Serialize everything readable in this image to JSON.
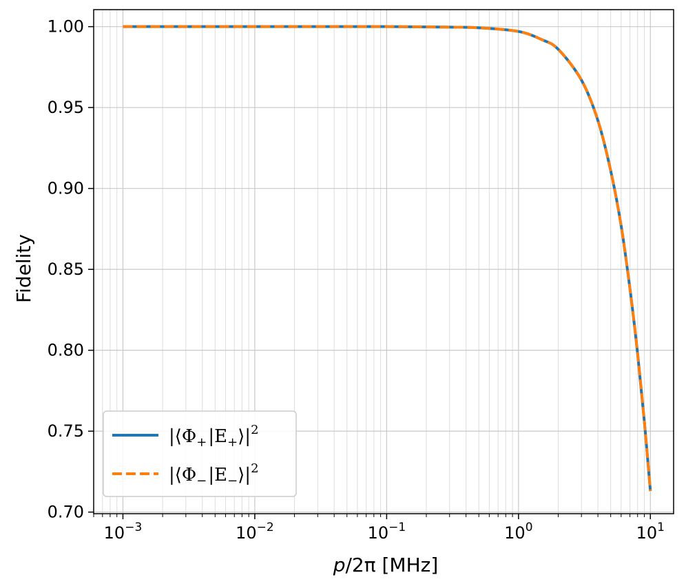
{
  "chart_data": {
    "type": "line",
    "xlabel_main": "p",
    "xlabel_rest": "/2π [MHz]",
    "ylabel": "Fidelity",
    "xscale": "log",
    "xlim": [
      0.0006,
      15
    ],
    "ylim": [
      0.699,
      1.0105
    ],
    "grid": true,
    "legend_position": "lower-left",
    "x_ticks": [
      {
        "value": 0.001,
        "base": "10",
        "exp": "−3"
      },
      {
        "value": 0.01,
        "base": "10",
        "exp": "−2"
      },
      {
        "value": 0.1,
        "base": "10",
        "exp": "−1"
      },
      {
        "value": 1,
        "base": "10",
        "exp": "0"
      },
      {
        "value": 10,
        "base": "10",
        "exp": "1"
      }
    ],
    "y_ticks": [
      {
        "value": 1.0,
        "label": "1.00"
      },
      {
        "value": 0.95,
        "label": "0.95"
      },
      {
        "value": 0.9,
        "label": "0.90"
      },
      {
        "value": 0.85,
        "label": "0.85"
      },
      {
        "value": 0.8,
        "label": "0.80"
      },
      {
        "value": 0.75,
        "label": "0.75"
      },
      {
        "value": 0.7,
        "label": "0.70"
      }
    ],
    "x": [
      0.001,
      0.01,
      0.1,
      0.3,
      0.5,
      1.0,
      1.5,
      2.0,
      3.0,
      4.0,
      5.0,
      6.0,
      7.0,
      8.0,
      9.0,
      10.0
    ],
    "series": [
      {
        "name": "|⟨Φ₊|E₊⟩|²",
        "legend_main": "|⟨Φ",
        "legend_sub1": "+",
        "legend_mid": "|E",
        "legend_sub2": "+",
        "legend_end": "⟩|",
        "legend_sup": "2",
        "color": "#1f77b4",
        "style": "solid",
        "values": [
          1.0,
          1.0,
          1.0,
          0.9997,
          0.9993,
          0.997,
          0.992,
          0.986,
          0.967,
          0.942,
          0.911,
          0.877,
          0.838,
          0.798,
          0.756,
          0.713
        ]
      },
      {
        "name": "|⟨Φ₋|E₋⟩|²",
        "legend_main": "|⟨Φ",
        "legend_sub1": "−",
        "legend_mid": "|E",
        "legend_sub2": "−",
        "legend_end": "⟩|",
        "legend_sup": "2",
        "color": "#ff7f0e",
        "style": "dashed",
        "values": [
          1.0,
          1.0,
          1.0,
          0.9997,
          0.9993,
          0.997,
          0.992,
          0.986,
          0.967,
          0.942,
          0.911,
          0.877,
          0.838,
          0.798,
          0.756,
          0.713
        ]
      }
    ]
  }
}
